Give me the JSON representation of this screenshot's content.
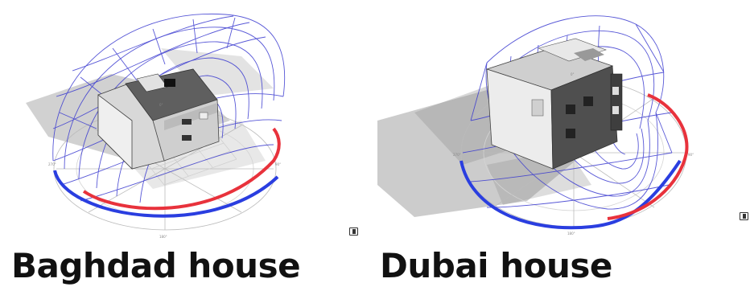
{
  "captions": {
    "left": "Baghdad house",
    "right": "Dubai house"
  },
  "colors": {
    "sun_path_grid": "#3a3ad0",
    "summer_arc": "#e8323c",
    "winter_arc": "#2a3ee0",
    "shadow": "#8a8a8a",
    "building_light": "#e6e6e6",
    "building_dark": "#5a5a5a"
  },
  "icons": [
    "pause-marker-icon",
    "pause-marker-icon"
  ]
}
